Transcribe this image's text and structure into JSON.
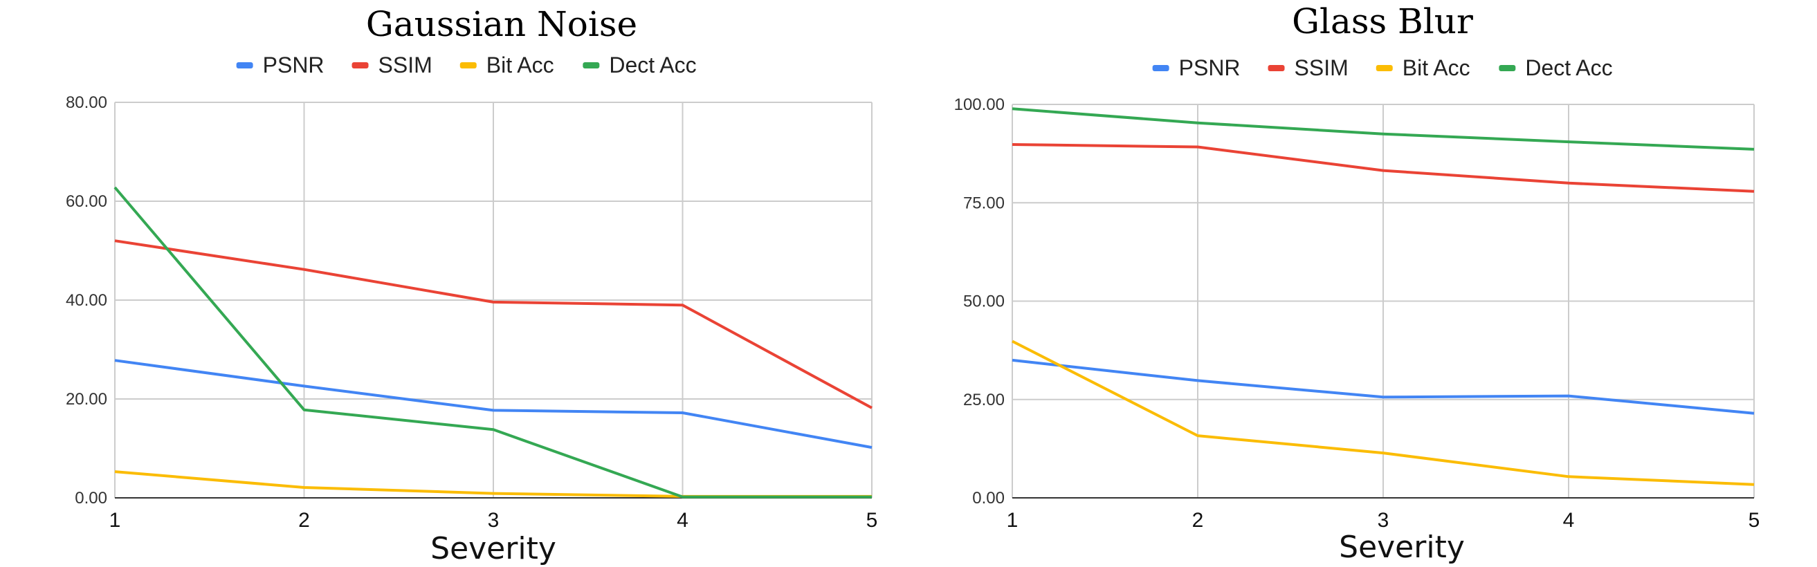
{
  "chart_data": [
    {
      "type": "line",
      "title": "Gaussian Noise",
      "xlabel": "Severity",
      "ylabel": "",
      "x": [
        1,
        2,
        3,
        4,
        5
      ],
      "ylim": [
        0,
        80
      ],
      "yticks": [
        "0.00",
        "20.00",
        "40.00",
        "60.00",
        "80.00"
      ],
      "xticks": [
        "1",
        "2",
        "3",
        "4",
        "5"
      ],
      "grid": true,
      "legend_position": "top",
      "series": [
        {
          "name": "PSNR",
          "color": "#4285F4",
          "values": [
            27.8,
            22.6,
            17.7,
            17.2,
            10.2
          ]
        },
        {
          "name": "SSIM",
          "color": "#EA4335",
          "values": [
            52.0,
            46.2,
            39.6,
            39.0,
            18.2
          ]
        },
        {
          "name": "Bit Acc",
          "color": "#FBBC04",
          "values": [
            5.3,
            2.1,
            0.9,
            0.3,
            0.3
          ]
        },
        {
          "name": "Dect Acc",
          "color": "#34A853",
          "values": [
            62.8,
            17.8,
            13.8,
            0.2,
            0.2
          ]
        }
      ]
    },
    {
      "type": "line",
      "title": "Glass Blur",
      "xlabel": "Severity",
      "ylabel": "",
      "x": [
        1,
        2,
        3,
        4,
        5
      ],
      "ylim": [
        0,
        100
      ],
      "yticks": [
        "0.00",
        "25.00",
        "50.00",
        "75.00",
        "100.00"
      ],
      "xticks": [
        "1",
        "2",
        "3",
        "4",
        "5"
      ],
      "grid": true,
      "legend_position": "top",
      "series": [
        {
          "name": "PSNR",
          "color": "#4285F4",
          "values": [
            35.0,
            29.8,
            25.6,
            25.9,
            21.5
          ]
        },
        {
          "name": "SSIM",
          "color": "#EA4335",
          "values": [
            89.8,
            89.2,
            83.2,
            80.0,
            77.9
          ]
        },
        {
          "name": "Bit Acc",
          "color": "#FBBC04",
          "values": [
            39.8,
            15.8,
            11.4,
            5.4,
            3.4
          ]
        },
        {
          "name": "Dect Acc",
          "color": "#34A853",
          "values": [
            98.9,
            95.3,
            92.5,
            90.5,
            88.6
          ]
        }
      ]
    }
  ]
}
